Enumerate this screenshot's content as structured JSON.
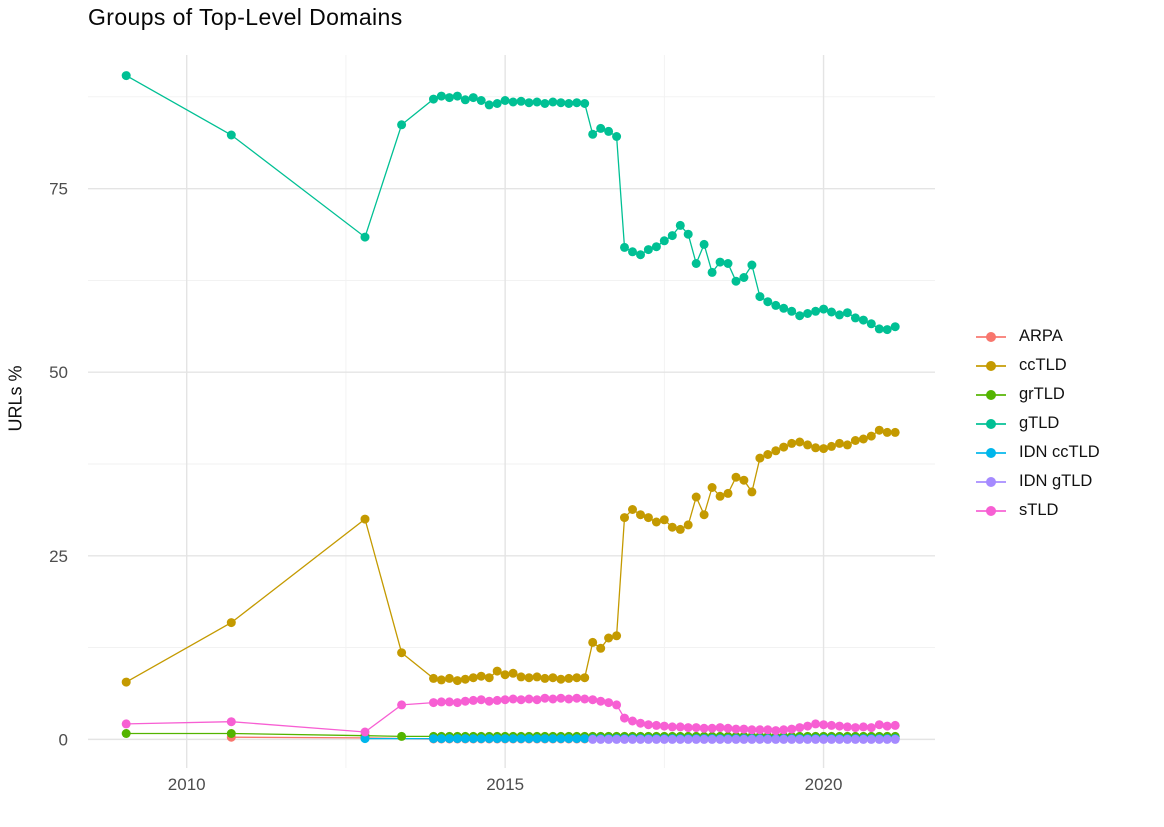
{
  "chart_data": {
    "type": "line",
    "title": "Groups of Top-Level Domains",
    "xlabel": "",
    "ylabel": "URLs %",
    "legend_position": "right",
    "grid": true,
    "background_color": "#ffffff",
    "grid_major_color": "#e4e4e4",
    "grid_minor_color": "#f1f1f1",
    "tick_text_color": "#4d4d4d",
    "axes": {
      "x_domain": [
        2008.45,
        2021.75
      ],
      "y_domain": [
        -3.9,
        93.2
      ],
      "x_major_ticks": [
        {
          "value": 2010,
          "label": "2010"
        },
        {
          "value": 2015,
          "label": "2015"
        },
        {
          "value": 2020,
          "label": "2020"
        }
      ],
      "x_minor_ticks": [
        2012.5,
        2017.5
      ],
      "y_major_ticks": [
        {
          "value": 0,
          "label": "0"
        },
        {
          "value": 25,
          "label": "25"
        },
        {
          "value": 50,
          "label": "50"
        },
        {
          "value": 75,
          "label": "75"
        }
      ],
      "y_minor_ticks": [
        12.5,
        37.5,
        62.5,
        87.5
      ]
    },
    "series": [
      {
        "name": "ARPA",
        "color": "#F8766D",
        "early": [
          [
            2010.7,
            0.3
          ],
          [
            2012.8,
            0.2
          ]
        ],
        "dense_flat": {
          "from": 2013.875,
          "to": 2021.125,
          "step": 0.125,
          "value": 0.05
        }
      },
      {
        "name": "ccTLD",
        "color": "#C49A00",
        "early": [
          [
            2009.05,
            7.8
          ],
          [
            2010.7,
            15.9
          ],
          [
            2012.8,
            30.0
          ],
          [
            2013.375,
            11.8
          ]
        ],
        "dense": {
          "from": 2013.875,
          "step": 0.125,
          "values": [
            8.3,
            8.1,
            8.3,
            8.0,
            8.2,
            8.4,
            8.6,
            8.4,
            9.3,
            8.8,
            9.0,
            8.5,
            8.4,
            8.5,
            8.3,
            8.4,
            8.2,
            8.3,
            8.4,
            8.4,
            13.2,
            12.4,
            13.8,
            14.1,
            30.2,
            31.3,
            30.6,
            30.2,
            29.6,
            29.9,
            28.9,
            28.6,
            29.2,
            33.0,
            30.6,
            34.3,
            33.1,
            33.5,
            35.7,
            35.3,
            33.7,
            38.3,
            38.8,
            39.3,
            39.8,
            40.3,
            40.5,
            40.1,
            39.7,
            39.6,
            39.9,
            40.3,
            40.1,
            40.7,
            40.9,
            41.3,
            42.1,
            41.8,
            41.8
          ]
        }
      },
      {
        "name": "grTLD",
        "color": "#53B400",
        "early": [
          [
            2009.05,
            0.8
          ],
          [
            2010.7,
            0.8
          ],
          [
            2012.8,
            0.5
          ],
          [
            2013.375,
            0.4
          ]
        ],
        "dense_flat": {
          "from": 2013.875,
          "to": 2021.125,
          "step": 0.125,
          "value": 0.4
        }
      },
      {
        "name": "gTLD",
        "color": "#00C094",
        "early": [
          [
            2009.05,
            90.4
          ],
          [
            2010.7,
            82.3
          ],
          [
            2012.8,
            68.4
          ],
          [
            2013.375,
            83.7
          ]
        ],
        "dense": {
          "from": 2013.875,
          "step": 0.125,
          "values": [
            87.2,
            87.6,
            87.4,
            87.6,
            87.1,
            87.4,
            87.0,
            86.4,
            86.6,
            87.0,
            86.8,
            86.9,
            86.7,
            86.8,
            86.6,
            86.8,
            86.7,
            86.6,
            86.7,
            86.6,
            82.4,
            83.2,
            82.8,
            82.1,
            67.0,
            66.4,
            66.0,
            66.7,
            67.1,
            67.9,
            68.6,
            70.0,
            68.8,
            64.8,
            67.4,
            63.6,
            65.0,
            64.8,
            62.4,
            62.9,
            64.6,
            60.3,
            59.6,
            59.1,
            58.7,
            58.3,
            57.7,
            58.0,
            58.3,
            58.6,
            58.2,
            57.8,
            58.1,
            57.4,
            57.1,
            56.6,
            55.9,
            55.8,
            56.2
          ]
        }
      },
      {
        "name": "IDN ccTLD",
        "color": "#00B6EB",
        "early": [
          [
            2012.8,
            0.1
          ]
        ],
        "dense_flat": {
          "from": 2013.875,
          "to": 2021.125,
          "step": 0.125,
          "value": 0.1
        }
      },
      {
        "name": "IDN gTLD",
        "color": "#A58AFF",
        "early": [],
        "dense_flat": {
          "from": 2016.375,
          "to": 2021.125,
          "step": 0.125,
          "value": 0.0
        }
      },
      {
        "name": "sTLD",
        "color": "#F75FD3",
        "early": [
          [
            2009.05,
            2.1
          ],
          [
            2010.7,
            2.4
          ],
          [
            2012.8,
            1.0
          ],
          [
            2013.375,
            4.7
          ]
        ],
        "dense": {
          "from": 2013.875,
          "step": 0.125,
          "values": [
            5.0,
            5.1,
            5.1,
            5.0,
            5.2,
            5.3,
            5.4,
            5.2,
            5.3,
            5.4,
            5.5,
            5.4,
            5.5,
            5.4,
            5.6,
            5.5,
            5.6,
            5.5,
            5.6,
            5.5,
            5.4,
            5.2,
            5.0,
            4.7,
            2.9,
            2.5,
            2.2,
            2.0,
            1.9,
            1.8,
            1.7,
            1.7,
            1.6,
            1.6,
            1.5,
            1.5,
            1.6,
            1.5,
            1.4,
            1.4,
            1.3,
            1.3,
            1.3,
            1.2,
            1.3,
            1.4,
            1.6,
            1.8,
            2.1,
            2.0,
            1.9,
            1.8,
            1.7,
            1.6,
            1.7,
            1.6,
            2.0,
            1.8,
            1.9
          ]
        }
      }
    ]
  }
}
